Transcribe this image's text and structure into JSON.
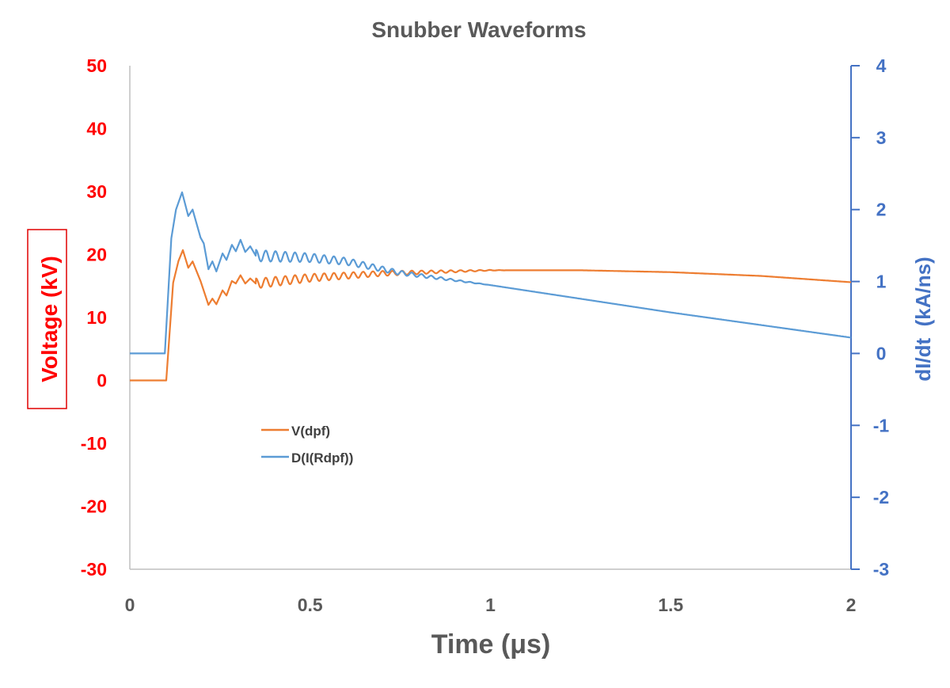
{
  "chart_data": {
    "type": "line",
    "title": "Snubber Waveforms",
    "xlabel": "Time (μs)",
    "ylabel_left": "Voltage (kV)",
    "ylabel_right": "dI/dt  (kA/ns)",
    "xlim": [
      0,
      2
    ],
    "ylim_left": [
      -30,
      50
    ],
    "ylim_right": [
      -3,
      4
    ],
    "x_ticks": [
      "0",
      "0.5",
      "1",
      "1.5",
      "2"
    ],
    "x_tick_values": [
      0,
      0.5,
      1,
      1.5,
      2
    ],
    "left_ticks": [
      "50",
      "40",
      "30",
      "20",
      "10",
      "0",
      "-10",
      "-20",
      "-30"
    ],
    "left_tick_values": [
      50,
      40,
      30,
      20,
      10,
      0,
      -10,
      -20,
      -30
    ],
    "right_ticks": [
      "4",
      "3",
      "2",
      "1",
      "0",
      "-1",
      "-2",
      "-3"
    ],
    "right_tick_values": [
      4,
      3,
      2,
      1,
      0,
      -1,
      -2,
      -3
    ],
    "grid": false,
    "legend_position": "center-left",
    "colors": {
      "left_axis": "#ff0000",
      "right_axis": "#4472c4",
      "title": "#595959"
    },
    "series": [
      {
        "name": "V(dpf)",
        "axis": "left",
        "color": "#ed7d31",
        "x": [
          0,
          0.101,
          0.12,
          0.135,
          0.147,
          0.162,
          0.174,
          0.196,
          0.218,
          0.229,
          0.24,
          0.257,
          0.268,
          0.283,
          0.294,
          0.307,
          0.32,
          0.334,
          0.349,
          0.5,
          0.7,
          1.0,
          1.25,
          1.5,
          1.75,
          2.0
        ],
        "y": [
          0,
          0,
          15.5,
          19,
          20.7,
          17.9,
          18.9,
          15.8,
          12.0,
          13.0,
          12.1,
          14.3,
          13.5,
          15.8,
          15.4,
          16.7,
          15.4,
          16.2,
          15.4,
          16.3,
          17.0,
          17.5,
          17.5,
          17.2,
          16.6,
          15.6
        ],
        "ripple": {
          "period_us": 0.027,
          "amplitude": 0.8,
          "from_us": 0.35,
          "to_us": 1.05
        }
      },
      {
        "name": "D(I(Rdpf))",
        "axis": "right",
        "color": "#5b9bd5",
        "x": [
          0,
          0.097,
          0.115,
          0.128,
          0.145,
          0.162,
          0.174,
          0.196,
          0.205,
          0.218,
          0.229,
          0.24,
          0.257,
          0.268,
          0.283,
          0.294,
          0.307,
          0.32,
          0.334,
          0.349,
          0.5,
          0.6,
          0.75,
          1.0,
          1.5,
          2.0
        ],
        "y": [
          0,
          0,
          1.6,
          2.0,
          2.24,
          1.91,
          2.0,
          1.61,
          1.53,
          1.17,
          1.28,
          1.14,
          1.39,
          1.3,
          1.51,
          1.42,
          1.58,
          1.41,
          1.49,
          1.36,
          1.33,
          1.28,
          1.12,
          0.95,
          0.57,
          0.22
        ],
        "ripple": {
          "period_us": 0.027,
          "amplitude": 0.08,
          "from_us": 0.35,
          "to_us": 1.0
        }
      }
    ]
  }
}
